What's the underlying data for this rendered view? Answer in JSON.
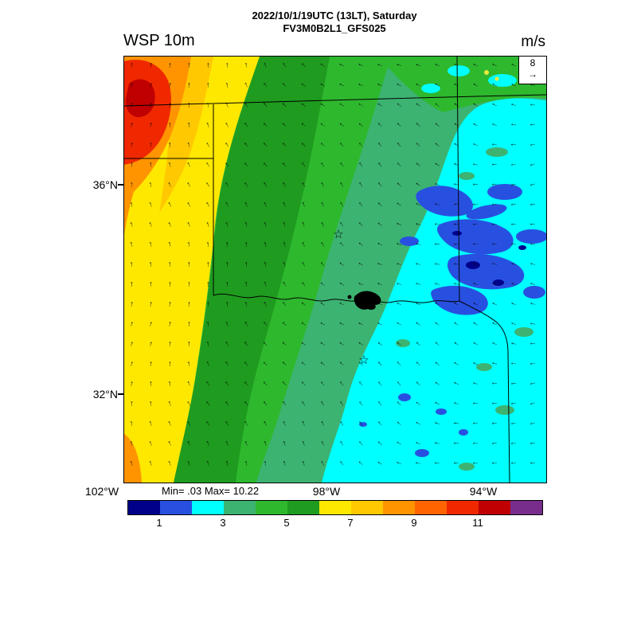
{
  "header": {
    "title_line1": "2022/10/1/19UTC (13LT), Saturday",
    "title_line2": "FV3M0B2L1_GFS025",
    "left_label": "WSP 10m",
    "right_label": "m/s"
  },
  "map": {
    "lat_labels": [
      "36°N",
      "32°N"
    ],
    "lon_labels": [
      "102°W",
      "98°W",
      "94°W"
    ],
    "stats_text": "Min= .03 Max= 10.22",
    "reference_vector": {
      "value": "8",
      "arrow": "→"
    },
    "star_symbol": "☆"
  },
  "colorbar": {
    "max_level": 13,
    "segments": [
      "#00008B",
      "#2850E0",
      "#00FFFF",
      "#3CB371",
      "#2EB82E",
      "#1F9B1F",
      "#FFE800",
      "#FFC800",
      "#FF9400",
      "#FF6400",
      "#F02800",
      "#C00000",
      "#782D8C"
    ],
    "ticks": [
      {
        "label": "1",
        "value": 1
      },
      {
        "label": "3",
        "value": 3
      },
      {
        "label": "5",
        "value": 5
      },
      {
        "label": "7",
        "value": 7
      },
      {
        "label": "9",
        "value": 9
      },
      {
        "label": "11",
        "value": 11
      }
    ]
  },
  "chart_data": {
    "type": "heatmap",
    "title": "WSP 10m — FV3M0B2L1_GFS025 — 2022/10/1/19UTC (13LT), Saturday",
    "variable": "10 m wind speed",
    "units": "m/s",
    "min": 0.03,
    "max": 10.22,
    "colorbar_tick_values": [
      1,
      3,
      5,
      7,
      9,
      11
    ],
    "colorbar_colors": [
      "#00008B",
      "#2850E0",
      "#00FFFF",
      "#3CB371",
      "#2EB82E",
      "#1F9B1F",
      "#FFE800",
      "#FFC800",
      "#FF9400",
      "#FF6400",
      "#F02800",
      "#C00000",
      "#782D8C"
    ],
    "x_axis": {
      "label": "longitude",
      "ticks": [
        "102°W",
        "98°W",
        "94°W"
      ]
    },
    "y_axis": {
      "label": "latitude",
      "ticks": [
        "36°N",
        "32°N"
      ]
    },
    "overlay": "wind vector arrows on regular grid; state borders (Texas / Oklahoma region); two star city markers; black lake on Red River",
    "reference_vector_m_s": 8,
    "field_summary": [
      {
        "region": "northwest corner",
        "approx_value_m_s": "8-10.2",
        "color": "orange/red"
      },
      {
        "region": "west edge band",
        "approx_value_m_s": "6-8",
        "color": "yellow"
      },
      {
        "region": "left-center diagonal band",
        "approx_value_m_s": "4-6",
        "color": "green"
      },
      {
        "region": "center",
        "approx_value_m_s": "3-4",
        "color": "sea green"
      },
      {
        "region": "east half",
        "approx_value_m_s": "2-3",
        "color": "cyan"
      },
      {
        "region": "east-central patch cluster",
        "approx_value_m_s": "1-2",
        "color": "blue"
      }
    ]
  }
}
